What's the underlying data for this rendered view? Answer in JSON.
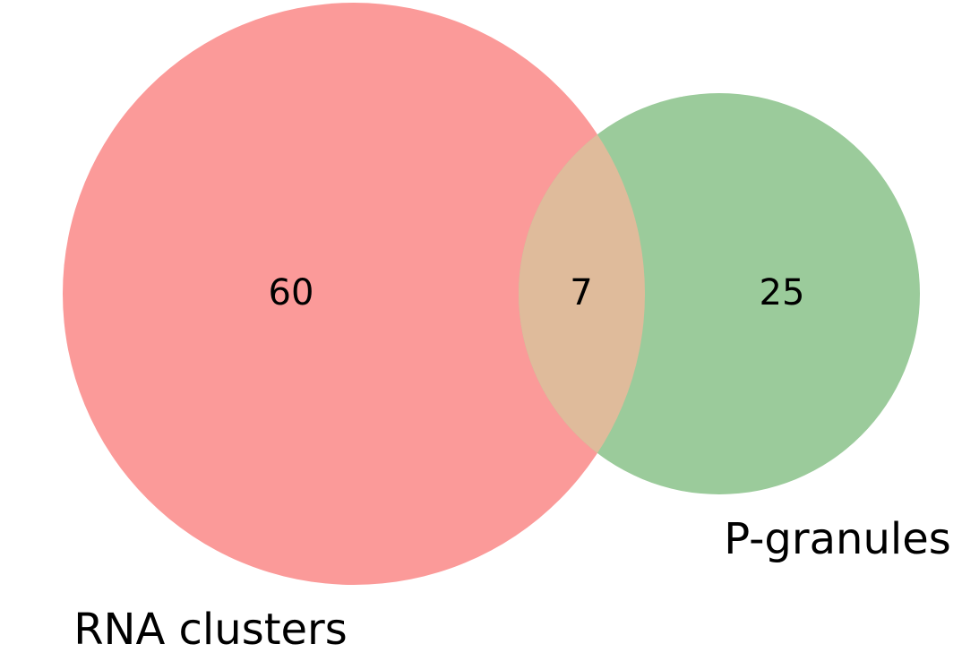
{
  "venn": {
    "sets": [
      {
        "name": "RNA clusters",
        "only_count": "60",
        "color": "#fb9a99"
      },
      {
        "name": "P-granules",
        "only_count": "25",
        "color": "#9bcb9b"
      }
    ],
    "intersection_count": "7",
    "intersection_color": "#dfbb9b"
  }
}
